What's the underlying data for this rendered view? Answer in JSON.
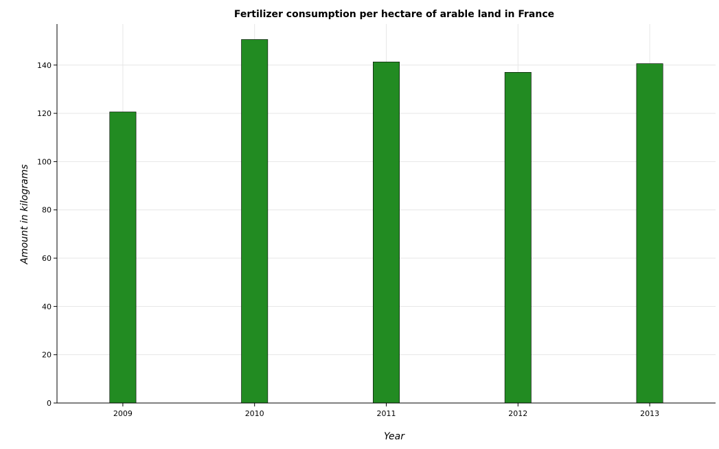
{
  "chart_data": {
    "type": "bar",
    "title": "Fertilizer consumption per hectare of arable land in France",
    "xlabel": "Year",
    "ylabel": "Amount in kilograms",
    "categories": [
      "2009",
      "2010",
      "2011",
      "2012",
      "2013"
    ],
    "values": [
      120.6,
      150.6,
      141.3,
      137.0,
      140.6
    ],
    "ylim": [
      0,
      157
    ],
    "yticks": [
      0,
      20,
      40,
      60,
      80,
      100,
      120,
      140
    ],
    "grid": true,
    "bar_color": "#228b22",
    "bar_stroke": "#000000"
  }
}
